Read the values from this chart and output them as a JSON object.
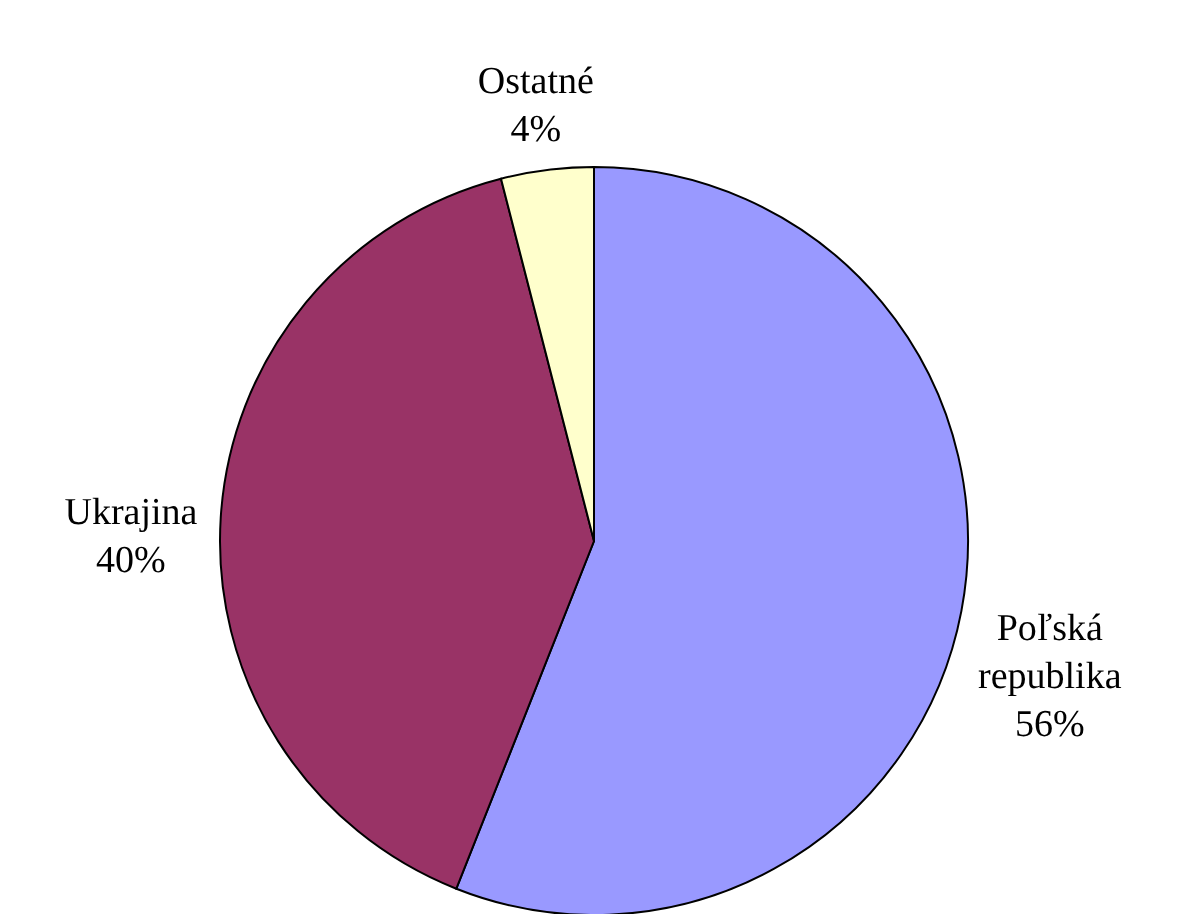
{
  "chart_data": {
    "type": "pie",
    "categories": [
      "Poľská republika",
      "Ukrajina",
      "Ostatné"
    ],
    "values": [
      56,
      40,
      4
    ],
    "colors": [
      "#9999ff",
      "#993366",
      "#ffffcc"
    ],
    "value_labels": [
      "56%",
      "40%",
      "4%"
    ]
  }
}
